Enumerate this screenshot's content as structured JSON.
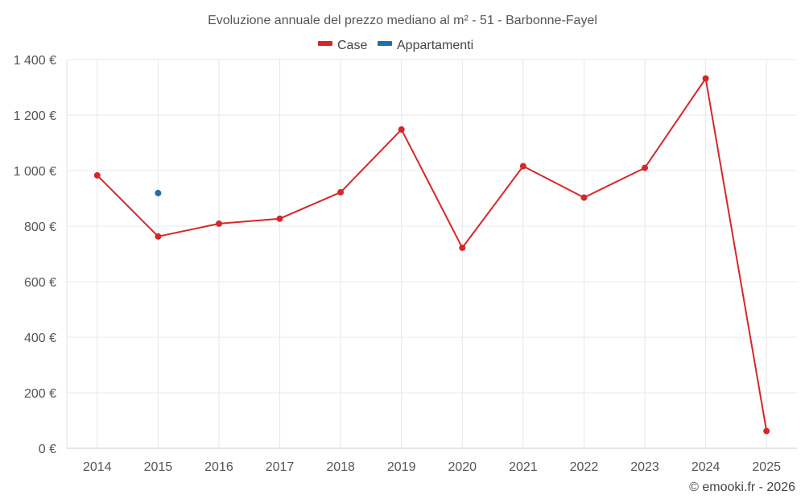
{
  "chart_data": {
    "type": "line",
    "title": "Evoluzione annuale del prezzo mediano al m² - 51 - Barbonne-Fayel",
    "categories": [
      "2014",
      "2015",
      "2016",
      "2017",
      "2018",
      "2019",
      "2020",
      "2021",
      "2022",
      "2023",
      "2024",
      "2025"
    ],
    "series": [
      {
        "name": "Case",
        "color": "#d62728",
        "values": [
          983,
          763,
          809,
          827,
          922,
          1148,
          722,
          1016,
          903,
          1010,
          1332,
          62
        ]
      },
      {
        "name": "Appartamenti",
        "color": "#1f6fa8",
        "values": [
          null,
          919,
          null,
          null,
          null,
          null,
          null,
          null,
          null,
          null,
          null,
          null
        ]
      }
    ],
    "ylim": [
      0,
      1400
    ],
    "yticks": [
      0,
      200,
      400,
      600,
      800,
      1000,
      1200,
      1400
    ],
    "ytick_labels": [
      "0 €",
      "200 €",
      "400 €",
      "600 €",
      "800 €",
      "1 000 €",
      "1 200 €",
      "1 400 €"
    ],
    "legend_position": "top-center",
    "grid": true
  },
  "credit": "© emooki.fr - 2026"
}
